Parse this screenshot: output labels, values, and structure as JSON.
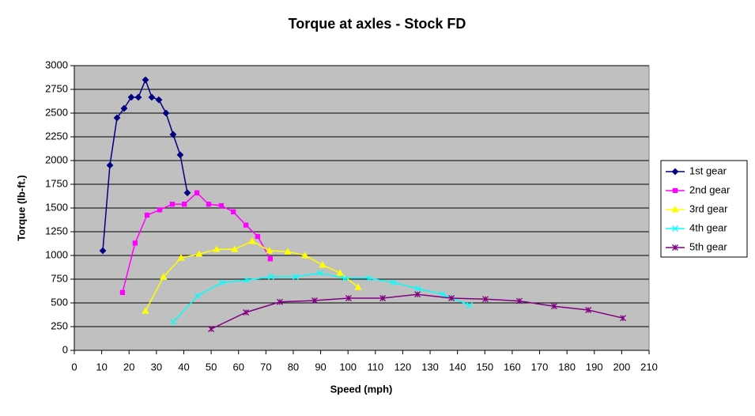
{
  "chart_data": {
    "type": "line",
    "title": "Torque at axles - Stock FD",
    "x_label": "Speed (mph)",
    "y_label": "Torque (lb-ft.)",
    "xlim": [
      0,
      210
    ],
    "xticks": [
      0,
      10,
      20,
      30,
      40,
      50,
      60,
      70,
      80,
      90,
      100,
      110,
      120,
      130,
      140,
      150,
      160,
      170,
      180,
      190,
      200,
      210
    ],
    "ylim": [
      0,
      3000
    ],
    "yticks": [
      0,
      250,
      500,
      750,
      1000,
      1250,
      1500,
      1750,
      2000,
      2250,
      2500,
      2750,
      3000
    ],
    "grid": true,
    "legend": "right",
    "series": [
      {
        "name": "1st gear",
        "color": "#000080",
        "marker": "diamond",
        "x": [
          10.4,
          13.0,
          15.6,
          18.2,
          20.8,
          23.4,
          26.0,
          28.3,
          30.9,
          33.5,
          36.1,
          38.7,
          41.3
        ],
        "values": [
          1050,
          1950,
          2450,
          2550,
          2667,
          2667,
          2850,
          2667,
          2640,
          2500,
          2275,
          2060,
          1660
        ]
      },
      {
        "name": "2nd gear",
        "color": "#ff00ff",
        "marker": "square",
        "x": [
          17.6,
          22.2,
          26.6,
          31.2,
          35.8,
          40.2,
          44.8,
          49.1,
          53.7,
          58.1,
          62.7,
          67.0,
          71.6
        ],
        "values": [
          610,
          1130,
          1425,
          1480,
          1540,
          1540,
          1660,
          1540,
          1525,
          1460,
          1320,
          1200,
          965
        ]
      },
      {
        "name": "3rd gear",
        "color": "#ffff00",
        "marker": "triangle",
        "x": [
          26.0,
          32.6,
          39.0,
          45.6,
          52.0,
          58.6,
          65.0,
          71.3,
          78.0,
          84.3,
          90.7,
          97.1,
          103.7
        ],
        "values": [
          415,
          775,
          975,
          1015,
          1065,
          1065,
          1150,
          1050,
          1040,
          1000,
          900,
          815,
          665
        ]
      },
      {
        "name": "4th gear",
        "color": "#00ffff",
        "marker": "x",
        "x": [
          36.1,
          45.1,
          54.0,
          63.0,
          71.9,
          80.9,
          89.8,
          98.8,
          107.7,
          116.7,
          125.6,
          134.6,
          144.4
        ],
        "values": [
          300,
          575,
          715,
          740,
          775,
          775,
          815,
          760,
          760,
          715,
          650,
          590,
          475
        ]
      },
      {
        "name": "5th gear",
        "color": "#800080",
        "marker": "star",
        "x": [
          50.0,
          62.7,
          75.1,
          87.8,
          100.2,
          112.7,
          125.4,
          137.8,
          150.2,
          162.6,
          175.3,
          187.8,
          200.5
        ],
        "values": [
          225,
          400,
          510,
          525,
          550,
          550,
          590,
          550,
          540,
          520,
          465,
          425,
          340
        ]
      }
    ]
  }
}
